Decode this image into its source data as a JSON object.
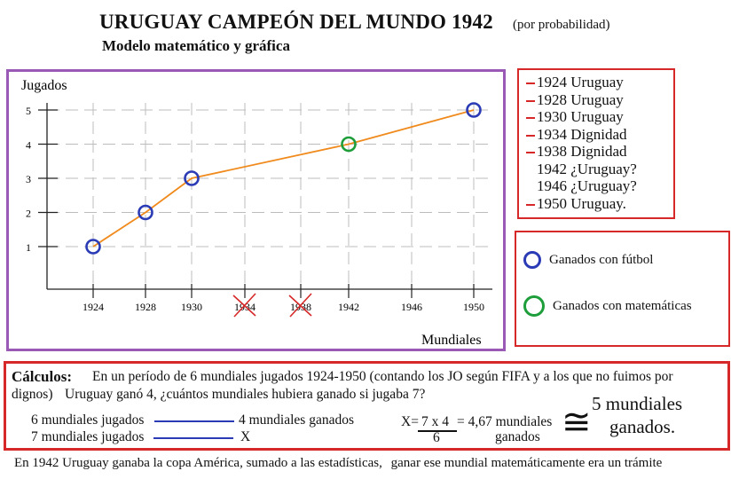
{
  "header": {
    "title": "URUGUAY CAMPEÓN DEL MUNDO 1942",
    "title_note": "(por probabilidad)",
    "subtitle": "Modelo matemático y gráfica"
  },
  "chart_data": {
    "type": "line",
    "ylabel": "Jugados",
    "xlabel": "Mundiales",
    "x_ticks": [
      "1924",
      "1928",
      "1930",
      "1934",
      "1938",
      "1942",
      "1946",
      "1950"
    ],
    "crossed_out_ticks": [
      "1934",
      "1938"
    ],
    "y_ticks": [
      "1",
      "2",
      "3",
      "4",
      "5"
    ],
    "ylim": [
      0,
      5
    ],
    "line_color": "#f08a1c",
    "points": [
      {
        "x": "1924",
        "y": 1,
        "type": "futbol"
      },
      {
        "x": "1928",
        "y": 2,
        "type": "futbol"
      },
      {
        "x": "1930",
        "y": 3,
        "type": "futbol"
      },
      {
        "x": "1942",
        "y": 4,
        "type": "matematicas"
      },
      {
        "x": "1950",
        "y": 5,
        "type": "futbol"
      }
    ],
    "grid": true
  },
  "history": [
    {
      "text": "1924 Uruguay",
      "dash": true
    },
    {
      "text": "1928 Uruguay",
      "dash": true
    },
    {
      "text": "1930 Uruguay",
      "dash": true
    },
    {
      "text": "1934 Dignidad",
      "dash": true
    },
    {
      "text": "1938 Dignidad",
      "dash": true
    },
    {
      "text": "1942 ¿Uruguay?",
      "dash": false
    },
    {
      "text": "1946 ¿Uruguay?",
      "dash": false
    },
    {
      "text": "1950 Uruguay.",
      "dash": true
    }
  ],
  "legend": {
    "futbol_label": "Ganados con fútbol",
    "futbol_color": "#2b3bb5",
    "mate_label": "Ganados con matemáticas",
    "mate_color": "#1e9e3a"
  },
  "calc": {
    "heading": "Cálculos:",
    "line1": "En un período de 6 mundiales jugados 1924-1950 (contando los JO según FIFA y a los que no fuimos por",
    "line2a": "dignos)",
    "line2b": "Uruguay ganó 4, ¿cuántos mundiales hubiera ganado si jugaba 7?",
    "row1_left": "6 mundiales jugados",
    "row1_right": "4 mundiales ganados",
    "row2_left": "7 mundiales jugados",
    "row2_right": "X",
    "eq_prefix": "X=",
    "eq_numerator": "7 x 4",
    "eq_equals": "= 4,67 mundiales",
    "eq_denominator": "6",
    "eq_unit": "ganados",
    "approx_symbol": "≅",
    "result_line1": "5 mundiales",
    "result_line2": "ganados."
  },
  "footer": {
    "part1": "En 1942 Uruguay ganaba la copa América, sumado a las estadísticas,",
    "part2": "ganar ese mundial matemáticamente era un trámite"
  }
}
